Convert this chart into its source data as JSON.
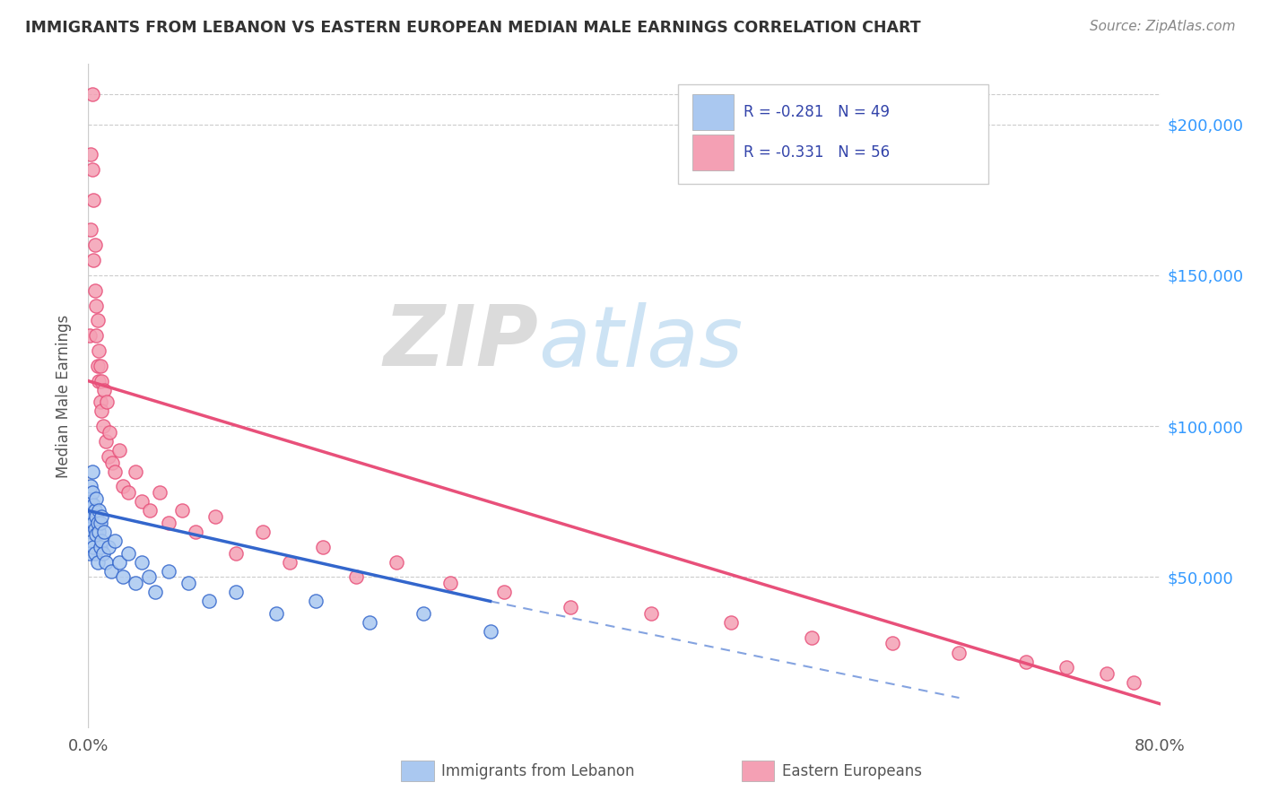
{
  "title": "IMMIGRANTS FROM LEBANON VS EASTERN EUROPEAN MEDIAN MALE EARNINGS CORRELATION CHART",
  "source": "Source: ZipAtlas.com",
  "ylabel": "Median Male Earnings",
  "y_ticks": [
    0,
    50000,
    100000,
    150000,
    200000
  ],
  "y_tick_labels": [
    "",
    "$50,000",
    "$100,000",
    "$150,000",
    "$200,000"
  ],
  "xlim": [
    0.0,
    0.8
  ],
  "ylim": [
    0,
    220000
  ],
  "color_lebanon": "#aac8f0",
  "color_eastern": "#f4a0b4",
  "color_lebanon_line": "#3366cc",
  "color_eastern_line": "#e8507a",
  "watermark_zip": "ZIP",
  "watermark_atlas": "atlas",
  "scatter_lebanon_x": [
    0.001,
    0.001,
    0.001,
    0.002,
    0.002,
    0.002,
    0.003,
    0.003,
    0.003,
    0.003,
    0.004,
    0.004,
    0.004,
    0.005,
    0.005,
    0.005,
    0.006,
    0.006,
    0.006,
    0.007,
    0.007,
    0.008,
    0.008,
    0.009,
    0.009,
    0.01,
    0.01,
    0.011,
    0.012,
    0.013,
    0.015,
    0.017,
    0.02,
    0.023,
    0.026,
    0.03,
    0.035,
    0.04,
    0.045,
    0.05,
    0.06,
    0.075,
    0.09,
    0.11,
    0.14,
    0.17,
    0.21,
    0.25,
    0.3
  ],
  "scatter_lebanon_y": [
    68000,
    72000,
    58000,
    75000,
    65000,
    80000,
    70000,
    78000,
    62000,
    85000,
    68000,
    74000,
    60000,
    72000,
    66000,
    58000,
    70000,
    64000,
    76000,
    68000,
    55000,
    65000,
    72000,
    60000,
    68000,
    62000,
    70000,
    58000,
    65000,
    55000,
    60000,
    52000,
    62000,
    55000,
    50000,
    58000,
    48000,
    55000,
    50000,
    45000,
    52000,
    48000,
    42000,
    45000,
    38000,
    42000,
    35000,
    38000,
    32000
  ],
  "scatter_eastern_x": [
    0.001,
    0.002,
    0.002,
    0.003,
    0.003,
    0.004,
    0.004,
    0.005,
    0.005,
    0.006,
    0.006,
    0.007,
    0.007,
    0.008,
    0.008,
    0.009,
    0.009,
    0.01,
    0.01,
    0.011,
    0.012,
    0.013,
    0.014,
    0.015,
    0.016,
    0.018,
    0.02,
    0.023,
    0.026,
    0.03,
    0.035,
    0.04,
    0.046,
    0.053,
    0.06,
    0.07,
    0.08,
    0.095,
    0.11,
    0.13,
    0.15,
    0.175,
    0.2,
    0.23,
    0.27,
    0.31,
    0.36,
    0.42,
    0.48,
    0.54,
    0.6,
    0.65,
    0.7,
    0.73,
    0.76,
    0.78
  ],
  "scatter_eastern_y": [
    130000,
    190000,
    165000,
    210000,
    185000,
    155000,
    175000,
    145000,
    160000,
    130000,
    140000,
    120000,
    135000,
    115000,
    125000,
    108000,
    120000,
    105000,
    115000,
    100000,
    112000,
    95000,
    108000,
    90000,
    98000,
    88000,
    85000,
    92000,
    80000,
    78000,
    85000,
    75000,
    72000,
    78000,
    68000,
    72000,
    65000,
    70000,
    58000,
    65000,
    55000,
    60000,
    50000,
    55000,
    48000,
    45000,
    40000,
    38000,
    35000,
    30000,
    28000,
    25000,
    22000,
    20000,
    18000,
    15000
  ],
  "line_lebanon_x0": 0.0,
  "line_lebanon_y0": 72000,
  "line_lebanon_x1": 0.3,
  "line_lebanon_y1": 42000,
  "line_lebanon_dash_x1": 0.65,
  "line_lebanon_dash_y1": 10000,
  "line_eastern_x0": 0.0,
  "line_eastern_y0": 115000,
  "line_eastern_x1": 0.8,
  "line_eastern_y1": 8000
}
